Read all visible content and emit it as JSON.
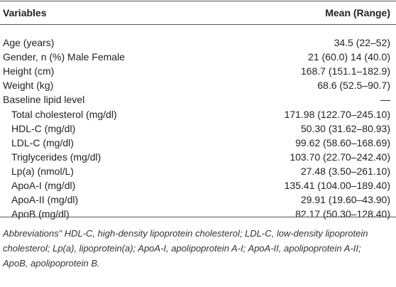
{
  "table": {
    "header": [
      "Variables",
      "Mean (Range)"
    ],
    "rows": [
      [
        "Age (years)",
        "34.5 (22–52)"
      ],
      [
        "Gender, n (%) Male Female",
        "21 (60.0) 14 (40.0)"
      ],
      [
        "Height (cm)",
        "168.7 (151.1–182.9)"
      ],
      [
        "Weight (kg)",
        "68.6 (52.5–90.7)"
      ]
    ],
    "group": {
      "label": "Baseline lipid level",
      "value": "—",
      "rows": [
        [
          "Total cholesterol (mg/dl)",
          "171.98 (122.70–245.10)"
        ],
        [
          "HDL-C (mg/dl)",
          "50.30 (31.62–80.93)"
        ],
        [
          "LDL-C (mg/dl)",
          "99.62 (58.60–168.69)"
        ],
        [
          "Triglycerides (mg/dl)",
          "103.70 (22.70–242.40)"
        ],
        [
          "Lp(a) (nmol/L)",
          "27.48 (3.50–261.10)"
        ],
        [
          "ApoA-I (mg/dl)",
          "135.41 (104.00–189.40)"
        ],
        [
          "ApoA-II (mg/dl)",
          "29.91 (19.60–43.90)"
        ],
        [
          "ApoB (mg/dl)",
          "82.17 (50.30–128.40)"
        ]
      ]
    },
    "footnote": "Abbreviations” HDL-C, high-density lipoprotein cholesterol; LDL-C, low-density lipoprotein cholesterol; Lp(a), lipoprotein(a); ApoA-I, apolipoprotein A-I; ApoA-II, apolipoprotein A-II; ApoB, apolipoprotein B."
  }
}
